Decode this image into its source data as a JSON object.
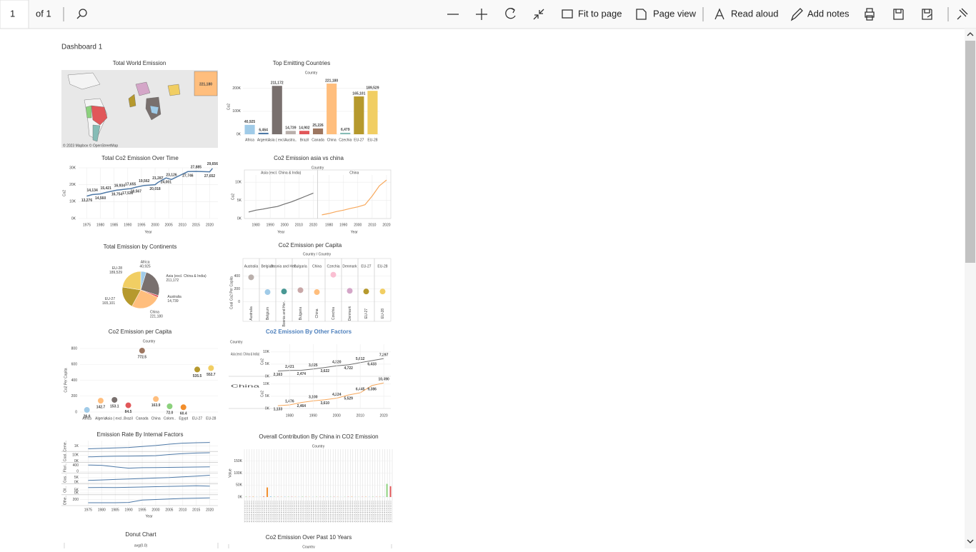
{
  "toolbar": {
    "page": "1",
    "page_count": "of 1",
    "fit": "Fit to page",
    "page_view": "Page view",
    "read_aloud": "Read aloud",
    "add_notes": "Add notes"
  },
  "dashboard": {
    "title": "Dashboard 1",
    "charts": [
      {
        "type": "map",
        "title": "Total World Emission",
        "label": "221,180",
        "credit": "© 2023 Mapbox © OpenStreetMap"
      },
      {
        "type": "bar",
        "title": "Top Emitting Countries",
        "header": "Country",
        "y_label": "Co2",
        "categories": [
          "Africa",
          "Argent..",
          "Asia ( excl..",
          "Austra..",
          "Brazil",
          "Canada",
          "China",
          "Czechia",
          "EU-27",
          "EU-28"
        ],
        "values": [
          40925,
          6464,
          211172,
          14739,
          14902,
          25226,
          221180,
          6479,
          165101,
          189529
        ],
        "value_labels": [
          "40,925",
          "6,464",
          "211,172",
          "14,739",
          "14,902",
          "25,226",
          "221,180",
          "6,479",
          "165,101",
          "189,529"
        ],
        "colors": [
          "#a0cbe8",
          "#4e79a7",
          "#79706e",
          "#bab0ac",
          "#e15759",
          "#9d7660",
          "#ffbe7d",
          "#86bcb6",
          "#b6992d",
          "#f1ce63"
        ],
        "ylim": [
          0,
          240000
        ],
        "yticks": [
          {
            "value": 0,
            "label": "0K"
          },
          {
            "value": 100000,
            "label": "100K"
          },
          {
            "value": 200000,
            "label": "200K"
          }
        ]
      },
      {
        "type": "line",
        "title": "Total Co2 Emission Over Time",
        "x_label": "Year",
        "y_label": "Co2",
        "x": [
          1975,
          1977,
          1980,
          1982,
          1986,
          1987,
          1990,
          1991,
          1993,
          1996,
          2000,
          2001,
          2004,
          2006,
          2012,
          2015,
          2020,
          2021
        ],
        "series": [
          {
            "color": "#4e79a7",
            "values": [
              13276,
              14134,
              14560,
              15421,
              16754,
              16934,
              17530,
              17655,
              18567,
              19562,
              20018,
              21287,
              24001,
              23126,
              27746,
              27885,
              27652,
              29656
            ],
            "value_labels": [
              "13,276",
              "14,134",
              "14,560",
              "15,421",
              "16,754",
              "16,934",
              "17,530",
              "17,655",
              "18,567",
              "19,562",
              "20,018",
              "21,287",
              "24,001",
              "23,126",
              "27,746",
              "27,885",
              "27,652",
              "29,656"
            ]
          }
        ],
        "xlim": [
          1972,
          2023
        ],
        "xticks": [
          1975,
          1980,
          1985,
          1990,
          1995,
          2000,
          2005,
          2010,
          2015,
          2020
        ],
        "ylim": [
          0,
          30000
        ],
        "yticks": [
          {
            "value": 0,
            "label": "0K"
          },
          {
            "value": 10000,
            "label": "10K"
          },
          {
            "value": 20000,
            "label": "20K"
          },
          {
            "value": 30000,
            "label": "30K"
          }
        ]
      },
      {
        "type": "panel_line",
        "title": "Co2 Emission asia vs china",
        "header": "Country",
        "x_label": "Year",
        "y_label": "Co2",
        "x": [
          1975,
          1980,
          1985,
          1990,
          1995,
          2000,
          2005,
          2010,
          2015,
          2020
        ],
        "series": [
          {
            "name": "Asia (excl. China & India)",
            "color": "#6f6f6f",
            "values": [
              1800,
              2300,
              2600,
              3000,
              3300,
              4000,
              4600,
              5400,
              6200,
              7000
            ]
          },
          {
            "name": "China",
            "color": "#f7a85c",
            "values": [
              1000,
              1400,
              1900,
              2300,
              2800,
              3200,
              3800,
              6200,
              9000,
              10600
            ]
          }
        ],
        "xlim": [
          1972,
          2023
        ],
        "xticks": [
          1980,
          1990,
          2000,
          2010,
          2020
        ],
        "ylim": [
          0,
          12000
        ],
        "yticks": [
          {
            "value": 0,
            "label": "0K"
          },
          {
            "value": 5000,
            "label": "5K"
          },
          {
            "value": 10000,
            "label": "10K"
          }
        ]
      },
      {
        "type": "pie",
        "title": "Total Emission by Continents",
        "categories": [
          "Africa",
          "Asia (excl. China & India)",
          "Australia",
          "China",
          "EU-27",
          "EU-28"
        ],
        "values": [
          40925,
          211172,
          14739,
          221180,
          165101,
          189529
        ],
        "value_labels": [
          "40,925",
          "211,172",
          "14,739",
          "221,180",
          "165,101",
          "189,529"
        ],
        "colors": [
          "#a0cbe8",
          "#79706e",
          "#e15759",
          "#ffbe7d",
          "#b6992d",
          "#f1ce63"
        ]
      },
      {
        "type": "dot_grid",
        "title": "Co2 Emission per Capita",
        "header": "Country / Country",
        "y_label": "Coal Co2 Per Capita",
        "categories": [
          "Australia",
          "Belgium",
          "Bosnia and Her..",
          "Bulgaria",
          "China",
          "Czechia",
          "Denmark",
          "EU-27",
          "EU-28"
        ],
        "values": [
          380,
          150,
          160,
          180,
          150,
          420,
          170,
          160,
          160
        ],
        "colors": [
          "#bab0ac",
          "#a0cbe8",
          "#499894",
          "#c9a8a8",
          "#ffbe7d",
          "#fabfd2",
          "#d4a6c8",
          "#b6992d",
          "#f1ce63"
        ],
        "ylim": [
          -60,
          450
        ],
        "yticks": [
          0,
          200,
          400
        ]
      },
      {
        "type": "dot",
        "title": "Co2 Emission per Capita",
        "header": "Country",
        "y_label": "Co2 Per Capita",
        "categories": [
          "Africa",
          "Algeria",
          "Asia ( excl..",
          "Brazil",
          "Canada",
          "China",
          "Colom..",
          "Egypt",
          "EU-27",
          "EU-28"
        ],
        "values": [
          26.6,
          142.7,
          153.1,
          84.5,
          772.5,
          163.9,
          72,
          60.4,
          535.5,
          552.7
        ],
        "value_labels": [
          "26.6",
          "142.7",
          "153.1",
          "84.5",
          "772.5",
          "163.9",
          "72.0",
          "60.4",
          "535.5",
          "552.7"
        ],
        "colors": [
          "#a0cbe8",
          "#ffbe7d",
          "#79706e",
          "#e15759",
          "#9d7660",
          "#ffbe7d",
          "#8cd17d",
          "#f28e2b",
          "#b6992d",
          "#f1ce63"
        ],
        "ylim": [
          0,
          800
        ],
        "yticks": [
          0,
          200,
          400,
          600,
          800
        ]
      },
      {
        "type": "row_line",
        "title": "Co2  Emission By Other Factors",
        "title_color": "#4f81bd",
        "header": "Country",
        "y_label": "Co2",
        "x": [
          1975,
          1980,
          1985,
          1990,
          1995,
          2000,
          2005,
          2010,
          2015,
          2020
        ],
        "series": [
          {
            "name": "Asia (excl. China & India)",
            "color": "#6f6f6f",
            "values": [
              2163,
              2421,
              2474,
              3025,
              3622,
              4320,
              4722,
              5612,
              6433,
              7297
            ],
            "value_labels": [
              "2,163",
              "2,421",
              "2,474",
              "3,025",
              "3,622",
              "4,320",
              "4,722",
              "5,612",
              "6,433",
              "7,297"
            ]
          },
          {
            "name": "China",
            "color": "#f7a85c",
            "values": [
              1133,
              1476,
              2464,
              3100,
              3610,
              4224,
              5529,
              6445,
              9386,
              10490
            ],
            "value_labels": [
              "1,133",
              "1,476",
              "2,464",
              "3,100",
              "3,610",
              "4,224",
              "5,529",
              "6,445",
              "9,386",
              "10,490"
            ]
          }
        ],
        "xlim": [
          1972,
          2023
        ],
        "xticks": [
          1980,
          1990,
          2000,
          2010,
          2020
        ],
        "ylim": [
          0,
          12000
        ],
        "yticks": [
          {
            "value": 0,
            "label": "0K"
          },
          {
            "value": 5000,
            "label": "5K"
          },
          {
            "value": 10000,
            "label": "10K"
          }
        ]
      },
      {
        "type": "small_multiples",
        "title": "Emission Rate By Internal Factors",
        "x_label": "Year",
        "x": [
          1975,
          1980,
          1985,
          1990,
          1995,
          2000,
          2005,
          2010,
          2015,
          2020
        ],
        "rows": [
          {
            "name": "Ceme..",
            "values": [
              400,
              500,
              600,
              700,
              900,
              1100,
              1400,
              1600,
              1700,
              1750
            ],
            "ylim": [
              0,
              2000
            ],
            "yticks": [
              {
                "value": 1000,
                "label": "1K"
              }
            ]
          },
          {
            "name": "Coal..",
            "values": [
              7000,
              7500,
              8000,
              8200,
              8500,
              9000,
              11000,
              12500,
              13500,
              14000
            ],
            "ylim": [
              -1000,
              15000
            ],
            "yticks": [
              {
                "value": 0,
                "label": "0K"
              },
              {
                "value": 10000,
                "label": "10K"
              }
            ]
          },
          {
            "name": "Flari..",
            "values": [
              420,
              400,
              300,
              220,
              250,
              260,
              270,
              280,
              290,
              300
            ],
            "ylim": [
              -50,
              550
            ],
            "yticks": [
              0,
              400
            ]
          },
          {
            "name": "Gas..",
            "values": [
              2000,
              2500,
              3000,
              3500,
              4000,
              4500,
              5000,
              5800,
              6500,
              7500
            ],
            "ylim": [
              -1000,
              9000
            ],
            "yticks": [
              {
                "value": 0,
                "label": "0K"
              },
              {
                "value": 5000,
                "label": "5K"
              }
            ]
          },
          {
            "name": "Oil..",
            "values": [
              9000,
              9200,
              9000,
              9500,
              10000,
              10500,
              11000,
              11500,
              12000,
              11500
            ],
            "ylim": [
              -2000,
              14000
            ],
            "yticks": [
              {
                "value": 0,
                "label": "0K"
              },
              {
                "value": 5000,
                "label": "5K"
              }
            ]
          },
          {
            "name": "Othe..",
            "values": [
              80,
              80,
              80,
              90,
              180,
              200,
              220,
              240,
              250,
              260
            ],
            "ylim": [
              0,
              350
            ],
            "yticks": [
              200
            ]
          }
        ],
        "xlim": [
          1972,
          2023
        ],
        "xticks": [
          1975,
          1980,
          1985,
          1990,
          1995,
          2000,
          2005,
          2010,
          2015,
          2020
        ]
      },
      {
        "type": "dense_bar",
        "title": "Overall Contribution By China in CO2 Emission",
        "header": "Country",
        "y_label": "Value",
        "values": [
          1500,
          800,
          1200,
          900,
          600,
          2000,
          40000,
          3000,
          1200,
          900,
          700,
          1500,
          1100,
          800,
          600,
          900,
          1300,
          700,
          500,
          800,
          1000,
          600,
          700,
          1200,
          900,
          800,
          600,
          500,
          700,
          900,
          1100,
          800,
          600,
          700,
          900,
          1000,
          1200,
          800,
          900,
          1500,
          55000,
          45000
        ],
        "ylim": [
          0,
          200000
        ],
        "yticks": [
          {
            "value": 0,
            "label": "0K"
          },
          {
            "value": 50000,
            "label": "50K"
          },
          {
            "value": 100000,
            "label": "100K"
          },
          {
            "value": 150000,
            "label": "150K"
          }
        ]
      },
      {
        "type": "stub",
        "title": "Donut Chart",
        "header": "avg(0.0)"
      },
      {
        "type": "stub",
        "title": "Co2 Emission Over Past 10 Years",
        "header": "Country"
      }
    ]
  }
}
